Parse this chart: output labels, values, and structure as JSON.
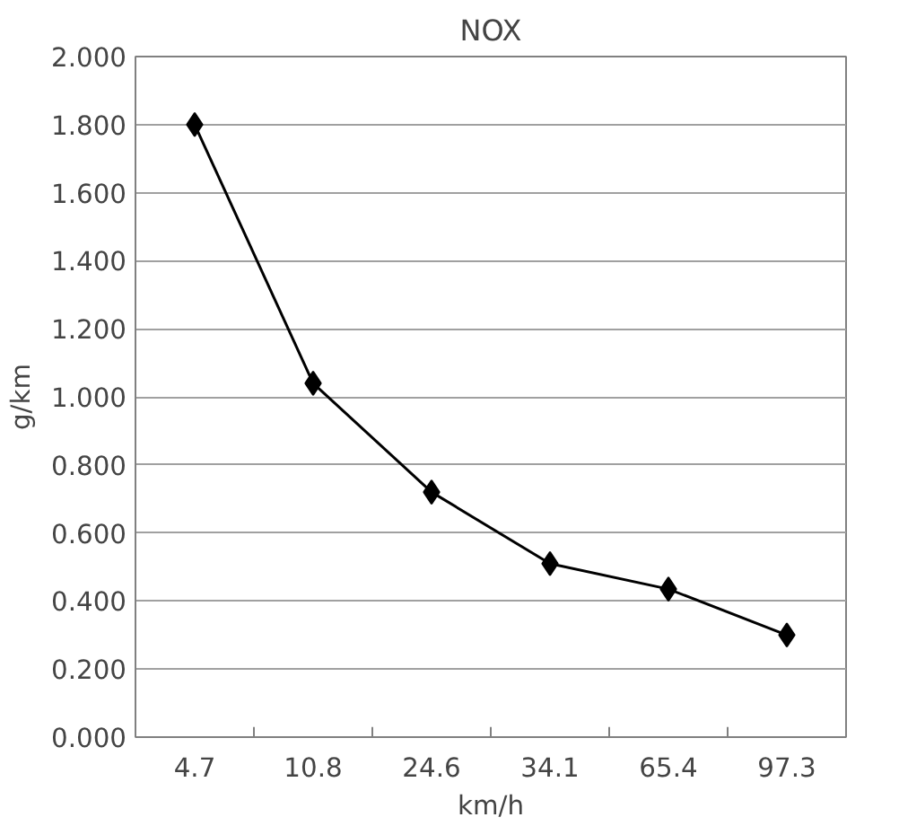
{
  "chart_data": {
    "type": "line",
    "title": "NOX",
    "xlabel": "km/h",
    "ylabel": "g/km",
    "categories": [
      "4.7",
      "10.8",
      "24.6",
      "34.1",
      "65.4",
      "97.3"
    ],
    "series": [
      {
        "color": "#000000",
        "values": [
          1.8,
          1.04,
          0.72,
          0.51,
          0.435,
          0.3
        ]
      }
    ],
    "ylim": [
      0,
      2
    ],
    "yticks": [
      {
        "value": 0,
        "label": "0.000"
      },
      {
        "value": 0.2,
        "label": "0.200"
      },
      {
        "value": 0.4,
        "label": "0.400"
      },
      {
        "value": 0.6,
        "label": "0.600"
      },
      {
        "value": 0.8,
        "label": "0.800"
      },
      {
        "value": 1,
        "label": "1.000"
      },
      {
        "value": 1.2,
        "label": "1.200"
      },
      {
        "value": 1.4,
        "label": "1.400"
      },
      {
        "value": 1.6,
        "label": "1.600"
      },
      {
        "value": 1.8,
        "label": "1.800"
      },
      {
        "value": 2,
        "label": "2.000"
      }
    ],
    "grid": "y",
    "marker": "diamond",
    "line_style": "solid"
  }
}
